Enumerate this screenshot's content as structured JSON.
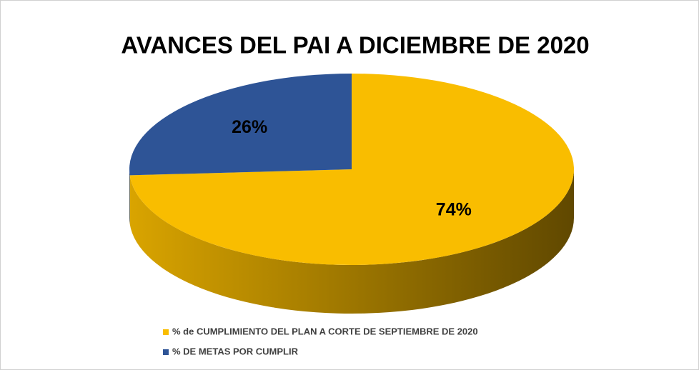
{
  "chart_data": {
    "type": "pie",
    "title": "AVANCES DEL PAI A DICIEMBRE DE 2020",
    "categories": [
      "% de CUMPLIMIENTO DEL PLAN A CORTE DE SEPTIEMBRE DE 2020",
      "% DE METAS POR CUMPLIR"
    ],
    "values": [
      74,
      26
    ],
    "value_labels": [
      "74%",
      "26%"
    ],
    "colors": [
      "#f9bd00",
      "#2e5496"
    ]
  }
}
